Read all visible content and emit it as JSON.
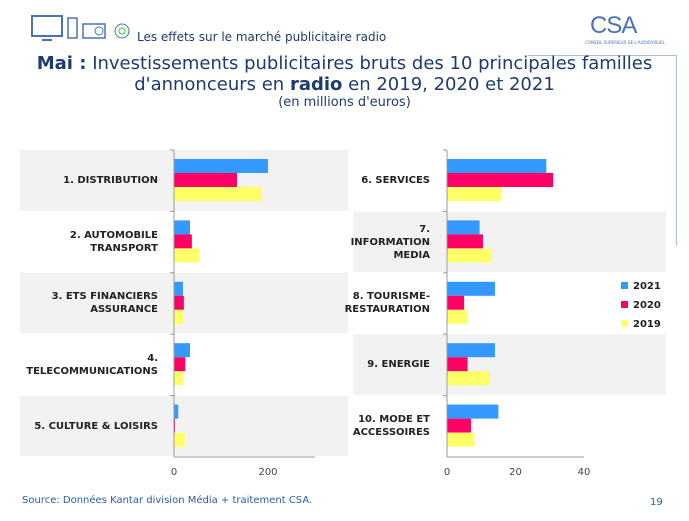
{
  "header": {
    "section": "Les effets sur le marché publicitaire radio",
    "logo": "CSA",
    "logo_sub": "CONSEIL SUPÉRIEUR DE L'AUDIOVISUEL"
  },
  "footer": {
    "source": "Source: Données Kantar division Média + traitement CSA.",
    "page": "19"
  },
  "colors": {
    "2021": "#3399ff",
    "2020": "#ff0066",
    "2019": "#ffff66",
    "band": "#f2f2f2",
    "title": "#1f3a6e"
  },
  "chart_data": [
    {
      "type": "bar",
      "orientation": "horizontal",
      "title_prefix": "Mai :",
      "title": "Investissements publicitaires bruts des 10 principales familles d'annonceurs en",
      "title_bold": "radio",
      "title_suffix": "en 2019, 2020 et 2021",
      "subtitle": "(en millions d'euros)",
      "categories": [
        "1. DISTRIBUTION",
        "2. AUTOMOBILE TRANSPORT",
        "3. ETS FINANCIERS ASSURANCE",
        "4. TELECOMMUNICATIONS",
        "5. CULTURE & LOISIRS"
      ],
      "series": [
        {
          "name": "2021",
          "values": [
            200,
            34,
            19,
            34,
            9
          ]
        },
        {
          "name": "2020",
          "values": [
            134,
            38,
            21,
            24,
            1
          ]
        },
        {
          "name": "2019",
          "values": [
            185,
            53,
            19,
            19,
            23
          ]
        }
      ],
      "xlim": [
        0,
        300
      ],
      "xticks": [
        "0",
        "200"
      ],
      "xtick_values": [
        0,
        200
      ]
    },
    {
      "type": "bar",
      "orientation": "horizontal",
      "categories": [
        "6. SERVICES",
        "7. INFORMATION MEDIA",
        "8. TOURISME-RESTAURATION",
        "9. ENERGIE",
        "10. MODE ET ACCESSOIRES"
      ],
      "series": [
        {
          "name": "2021",
          "values": [
            29,
            9.5,
            14,
            14,
            15
          ]
        },
        {
          "name": "2020",
          "values": [
            31,
            10.5,
            5,
            6,
            7
          ]
        },
        {
          "name": "2019",
          "values": [
            16,
            13,
            6,
            12.5,
            8
          ]
        }
      ],
      "xlim": [
        0,
        40
      ],
      "xticks": [
        "0",
        "20",
        "40"
      ],
      "xtick_values": [
        0,
        20,
        40
      ],
      "legend": [
        "2021",
        "2020",
        "2019"
      ],
      "legend_position": "right"
    }
  ]
}
